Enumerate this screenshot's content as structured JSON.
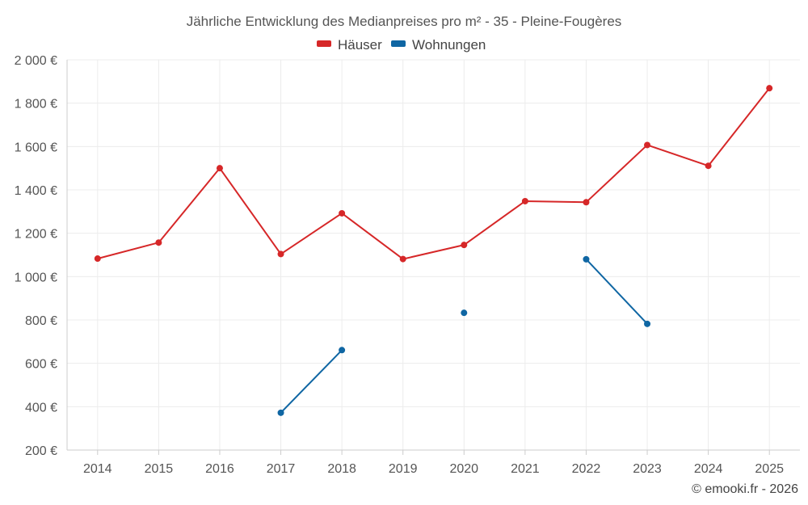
{
  "chart_data": {
    "type": "line",
    "title": "Jährliche Entwicklung des Medianpreises pro m² - 35 - Pleine-Fougères",
    "categories": [
      "2014",
      "2015",
      "2016",
      "2017",
      "2018",
      "2019",
      "2020",
      "2021",
      "2022",
      "2023",
      "2024",
      "2025"
    ],
    "series": [
      {
        "name": "Häuser",
        "color": "#d62728",
        "values": [
          1083,
          1157,
          1500,
          1104,
          1292,
          1081,
          1146,
          1348,
          1343,
          1607,
          1511,
          1869
        ]
      },
      {
        "name": "Wohnungen",
        "color": "#0f66a3",
        "values": [
          null,
          null,
          null,
          372,
          661,
          null,
          833,
          null,
          1080,
          782,
          null,
          null
        ]
      }
    ],
    "y_ticks": [
      "200 €",
      "400 €",
      "600 €",
      "800 €",
      "1 000 €",
      "1 200 €",
      "1 400 €",
      "1 600 €",
      "1 800 €",
      "2 000 €"
    ],
    "ylim": [
      200,
      2000
    ],
    "grid": true,
    "legend": "top-center"
  },
  "credit": "© emooki.fr - 2026"
}
